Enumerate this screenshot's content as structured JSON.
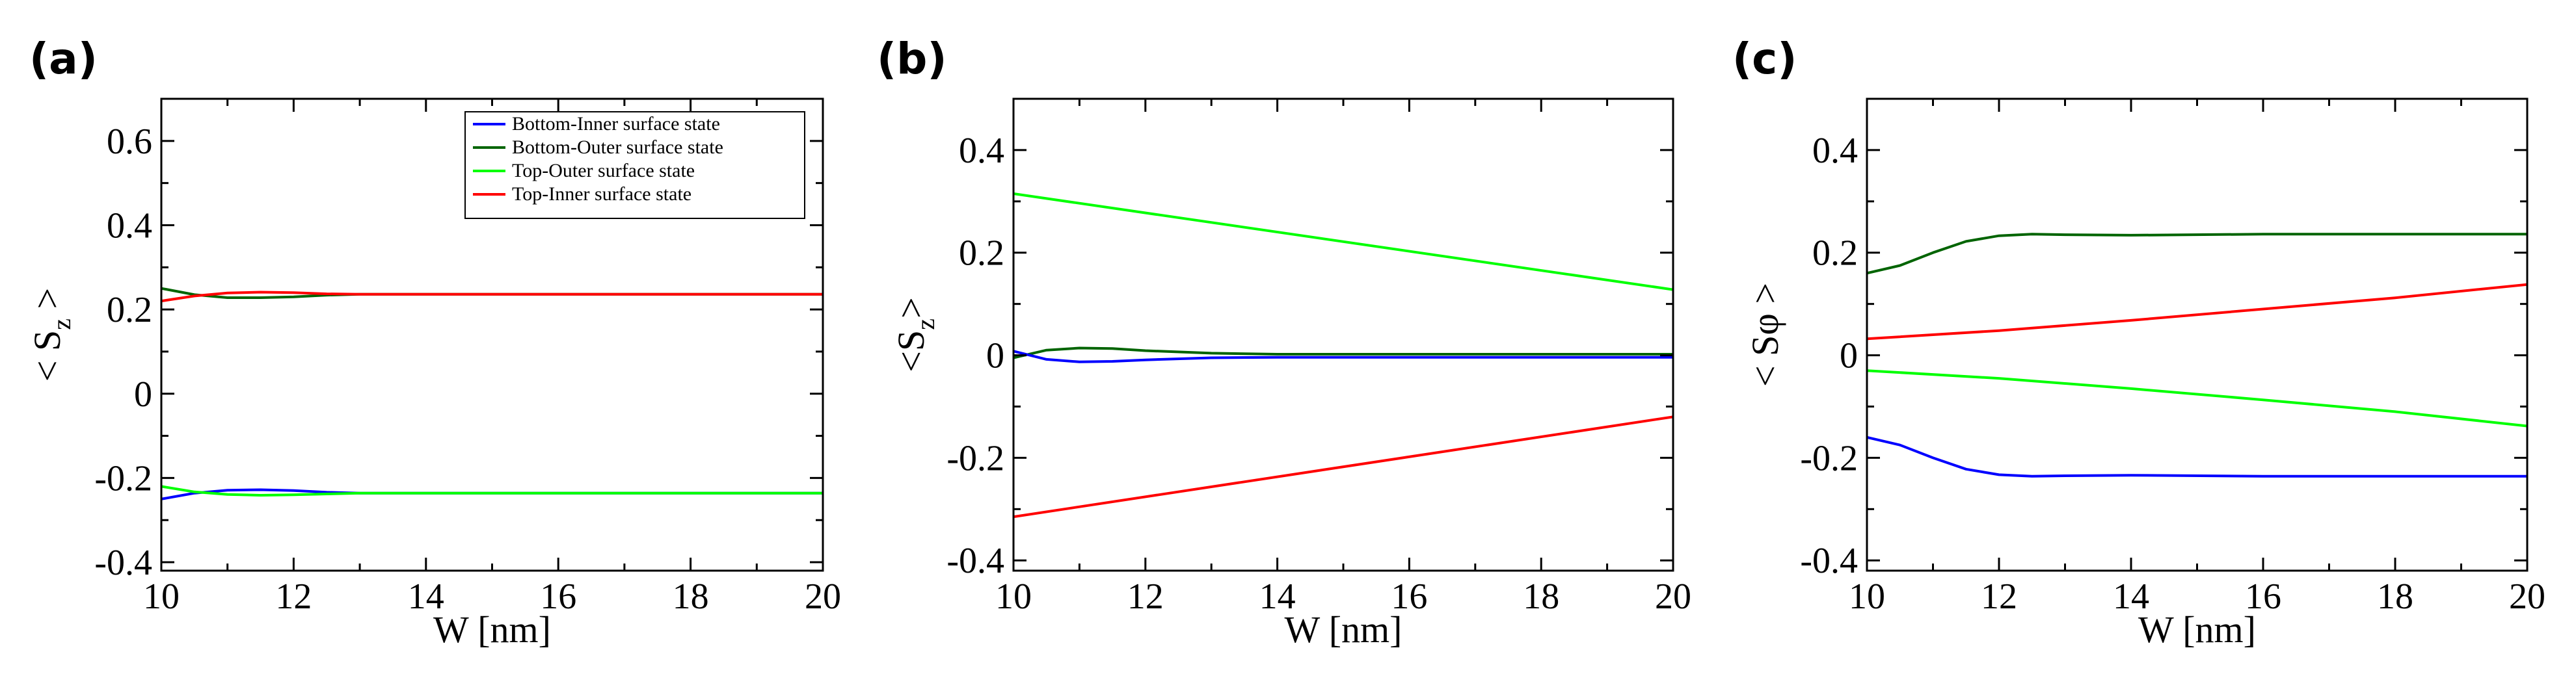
{
  "chart_data": [
    {
      "type": "line",
      "panel_label": "(a)",
      "xlabel": "W [nm]",
      "ylabel": "< S",
      "ylabel_sub": "z",
      "ylabel_end": " >",
      "xlim": [
        10,
        20
      ],
      "ylim": [
        -0.42,
        0.7
      ],
      "xticks": [
        10,
        12,
        14,
        16,
        18,
        20
      ],
      "xtick_labels": [
        "10",
        "12",
        "14",
        "16",
        "18",
        "20"
      ],
      "yticks": [
        -0.4,
        -0.2,
        0,
        0.2,
        0.4,
        0.6
      ],
      "ytick_labels": [
        "-0.4",
        "-0.2",
        "0",
        "0.2",
        "0.4",
        "0.6"
      ],
      "grid": false,
      "legend": {
        "placement": "top-right",
        "entries": [
          {
            "name": "Bottom-Inner surface state",
            "color": "#0000ff"
          },
          {
            "name": "Bottom-Outer surface state",
            "color": "#006400"
          },
          {
            "name": "Top-Outer surface state",
            "color": "#00ff00"
          },
          {
            "name": "Top-Inner surface state",
            "color": "#ff0000"
          }
        ]
      },
      "series": [
        {
          "color": "#006400",
          "x": [
            10,
            10.5,
            11,
            11.5,
            12,
            12.5,
            13,
            14,
            16,
            18,
            20
          ],
          "y": [
            0.25,
            0.235,
            0.228,
            0.228,
            0.23,
            0.234,
            0.236,
            0.236,
            0.236,
            0.236,
            0.236
          ]
        },
        {
          "color": "#ff0000",
          "x": [
            10,
            10.5,
            11,
            11.5,
            12,
            12.5,
            13,
            14,
            16,
            18,
            20
          ],
          "y": [
            0.22,
            0.232,
            0.239,
            0.241,
            0.24,
            0.237,
            0.236,
            0.236,
            0.236,
            0.236,
            0.236
          ]
        },
        {
          "color": "#0000ff",
          "x": [
            10,
            10.5,
            11,
            11.5,
            12,
            12.5,
            13,
            14,
            16,
            18,
            20
          ],
          "y": [
            -0.25,
            -0.236,
            -0.229,
            -0.228,
            -0.23,
            -0.234,
            -0.236,
            -0.236,
            -0.236,
            -0.236,
            -0.236
          ]
        },
        {
          "color": "#00ff00",
          "x": [
            10,
            10.5,
            11,
            11.5,
            12,
            12.5,
            13,
            14,
            16,
            18,
            20
          ],
          "y": [
            -0.22,
            -0.233,
            -0.239,
            -0.241,
            -0.24,
            -0.238,
            -0.236,
            -0.236,
            -0.236,
            -0.236,
            -0.236
          ]
        }
      ]
    },
    {
      "type": "line",
      "panel_label": "(b)",
      "xlabel": "W [nm]",
      "ylabel": "<S",
      "ylabel_sub": "z",
      "ylabel_end": ">",
      "xlim": [
        10,
        20
      ],
      "ylim": [
        -0.42,
        0.5
      ],
      "xticks": [
        10,
        12,
        14,
        16,
        18,
        20
      ],
      "xtick_labels": [
        "10",
        "12",
        "14",
        "16",
        "18",
        "20"
      ],
      "yticks": [
        -0.4,
        -0.2,
        0,
        0.2,
        0.4
      ],
      "ytick_labels": [
        "-0.4",
        "-0.2",
        "0",
        "0.2",
        "0.4"
      ],
      "grid": false,
      "series": [
        {
          "color": "#00ff00",
          "x": [
            10,
            20
          ],
          "y": [
            0.315,
            0.128
          ]
        },
        {
          "color": "#ff0000",
          "x": [
            10,
            20
          ],
          "y": [
            -0.315,
            -0.12
          ]
        },
        {
          "color": "#006400",
          "x": [
            10,
            10.5,
            11,
            11.5,
            12,
            13,
            14,
            16,
            18,
            20
          ],
          "y": [
            -0.005,
            0.01,
            0.014,
            0.013,
            0.009,
            0.004,
            0.002,
            0.002,
            0.002,
            0.002
          ]
        },
        {
          "color": "#0000ff",
          "x": [
            10,
            10.5,
            11,
            11.5,
            12,
            13,
            14,
            16,
            18,
            20
          ],
          "y": [
            0.008,
            -0.008,
            -0.013,
            -0.012,
            -0.009,
            -0.005,
            -0.004,
            -0.004,
            -0.004,
            -0.004
          ]
        }
      ]
    },
    {
      "type": "line",
      "panel_label": "(c)",
      "xlabel": "W [nm]",
      "ylabel": "< Sφ >",
      "ylabel_sub": "",
      "ylabel_end": "",
      "xlim": [
        10,
        20
      ],
      "ylim": [
        -0.42,
        0.5
      ],
      "xticks": [
        10,
        12,
        14,
        16,
        18,
        20
      ],
      "xtick_labels": [
        "10",
        "12",
        "14",
        "16",
        "18",
        "20"
      ],
      "yticks": [
        -0.4,
        -0.2,
        0,
        0.2,
        0.4
      ],
      "ytick_labels": [
        "-0.4",
        "-0.2",
        "0",
        "0.2",
        "0.4"
      ],
      "grid": false,
      "series": [
        {
          "color": "#006400",
          "x": [
            10,
            10.5,
            11,
            11.5,
            12,
            12.5,
            13,
            14,
            16,
            18,
            20
          ],
          "y": [
            0.16,
            0.175,
            0.2,
            0.222,
            0.233,
            0.236,
            0.235,
            0.234,
            0.236,
            0.236,
            0.236
          ]
        },
        {
          "color": "#ff0000",
          "x": [
            10,
            12,
            14,
            16,
            18,
            20
          ],
          "y": [
            0.032,
            0.048,
            0.068,
            0.09,
            0.112,
            0.138
          ]
        },
        {
          "color": "#00ff00",
          "x": [
            10,
            12,
            14,
            16,
            18,
            20
          ],
          "y": [
            -0.03,
            -0.045,
            -0.065,
            -0.087,
            -0.11,
            -0.138
          ]
        },
        {
          "color": "#0000ff",
          "x": [
            10,
            10.5,
            11,
            11.5,
            12,
            12.5,
            13,
            14,
            16,
            18,
            20
          ],
          "y": [
            -0.16,
            -0.175,
            -0.2,
            -0.222,
            -0.233,
            -0.236,
            -0.235,
            -0.234,
            -0.236,
            -0.236,
            -0.236
          ]
        }
      ]
    }
  ]
}
